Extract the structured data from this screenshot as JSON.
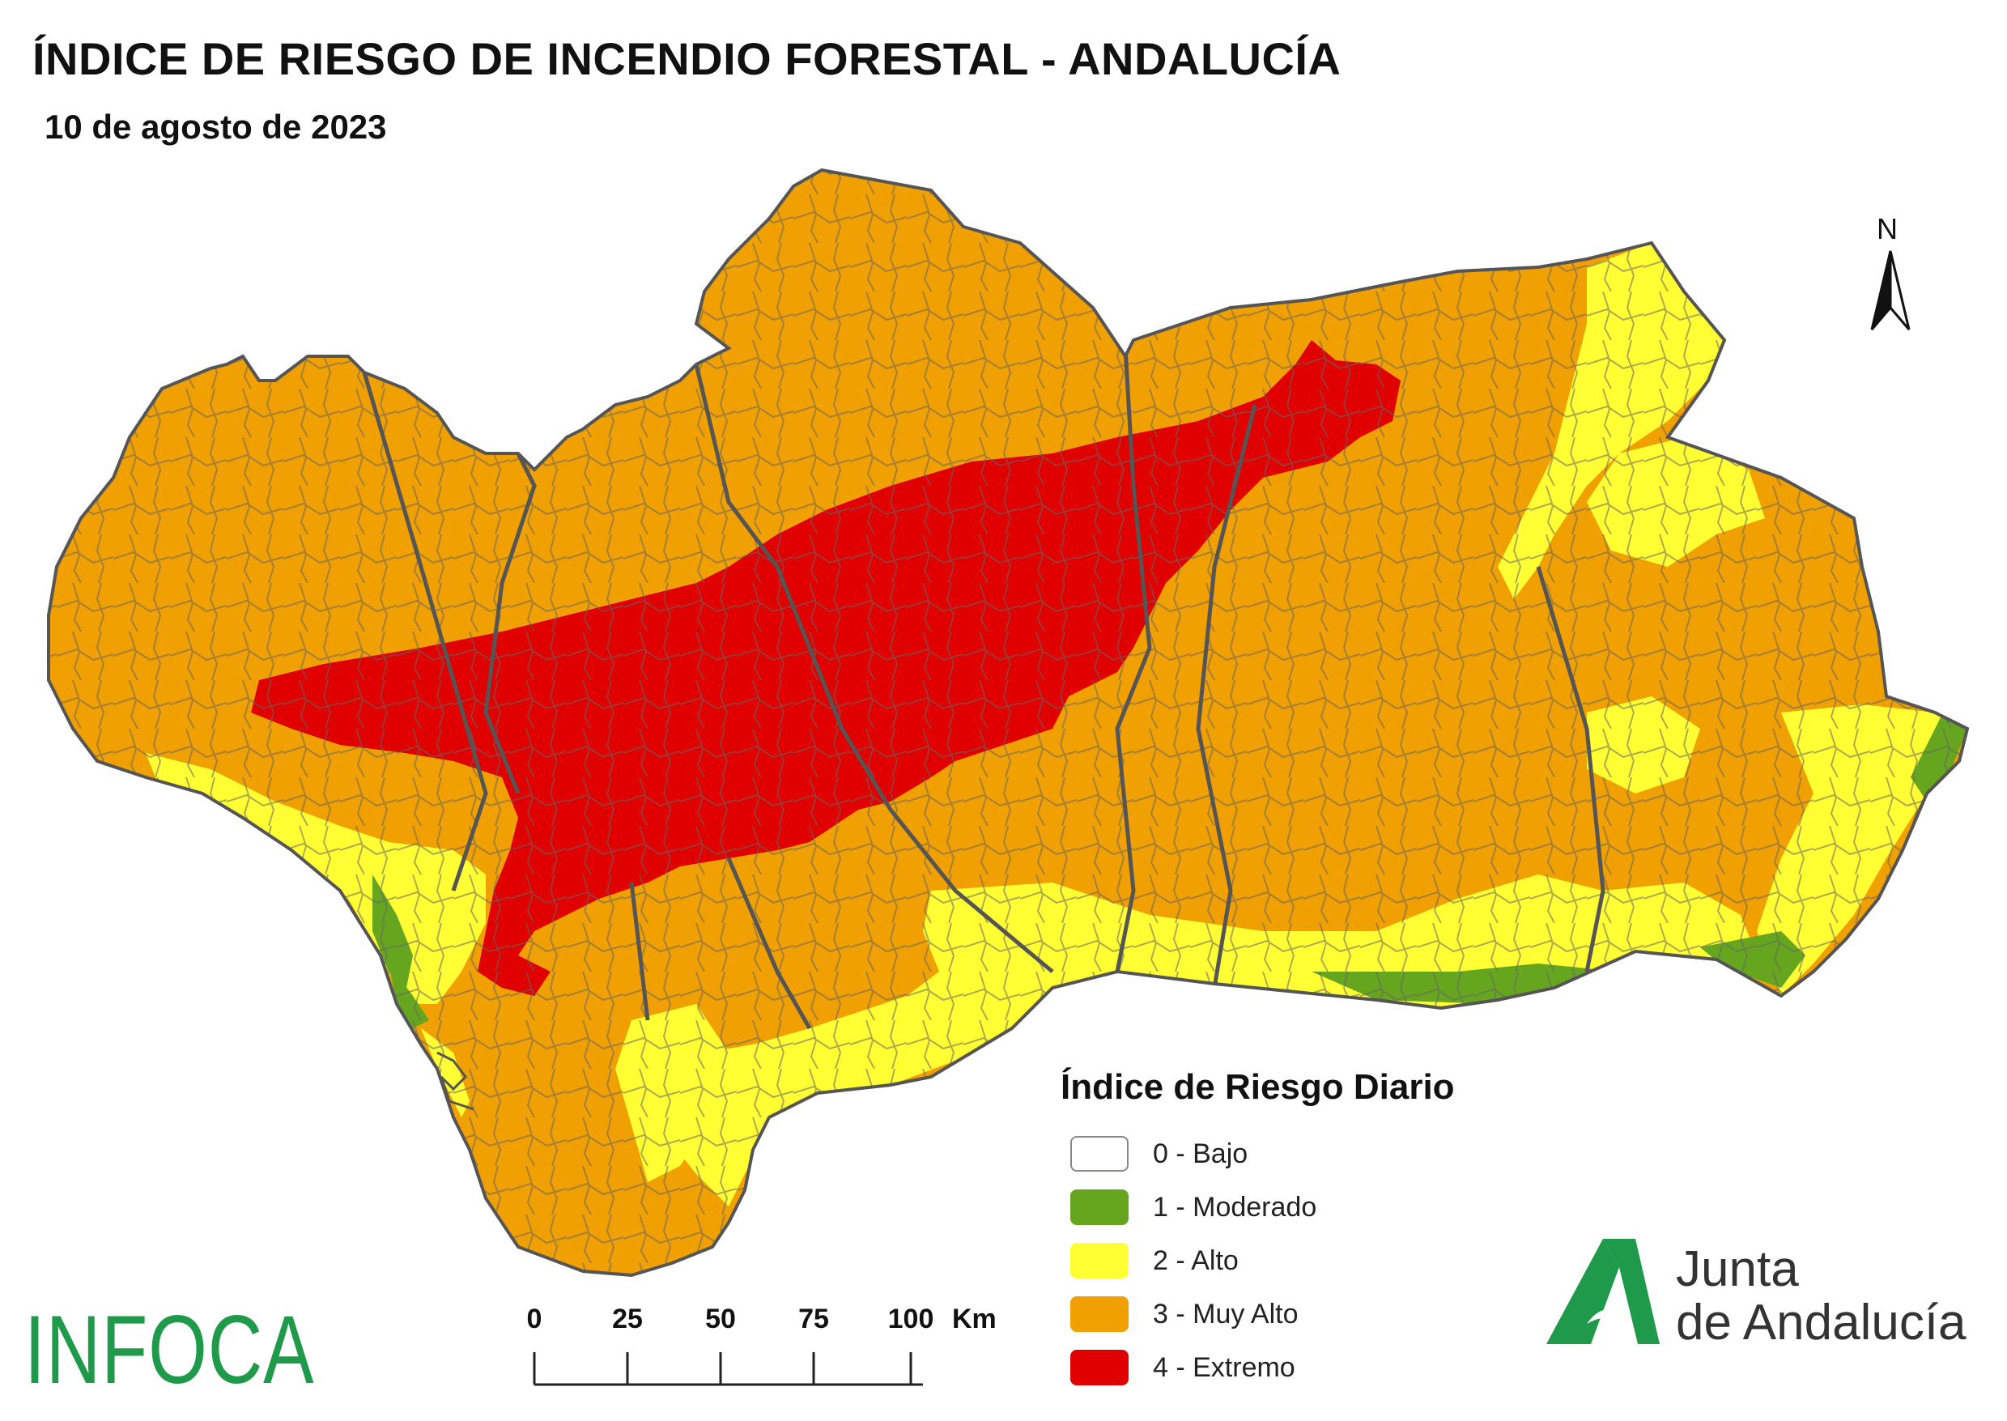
{
  "header": {
    "title": "ÍNDICE DE RIESGO DE INCENDIO FORESTAL - ANDALUCÍA",
    "subtitle": "10 de agosto de 2023"
  },
  "map": {
    "north_label": "N",
    "colors": {
      "bajo": "#ffffff",
      "moderado": "#66a61e",
      "alto": "#ffff33",
      "muy_alto": "#f0a000",
      "extremo": "#e00000",
      "boundary": "#555555"
    }
  },
  "legend": {
    "title": "Índice de Riesgo Diario",
    "items": [
      {
        "label": "0 - Bajo",
        "color": "#ffffff",
        "border": "#888888"
      },
      {
        "label": "1 - Moderado",
        "color": "#66a61e",
        "border": "#66a61e"
      },
      {
        "label": "2 - Alto",
        "color": "#ffff33",
        "border": "#ffff33"
      },
      {
        "label": "3 - Muy Alto",
        "color": "#f0a000",
        "border": "#f0a000"
      },
      {
        "label": "4 - Extremo",
        "color": "#e00000",
        "border": "#e00000"
      }
    ]
  },
  "scale_bar": {
    "ticks": [
      "0",
      "25",
      "50",
      "75",
      "100"
    ],
    "unit": "Km"
  },
  "logos": {
    "infoca": "INFOCA",
    "junta_line1": "Junta",
    "junta_line2": "de Andalucía",
    "junta_color": "#1f9a4a"
  }
}
